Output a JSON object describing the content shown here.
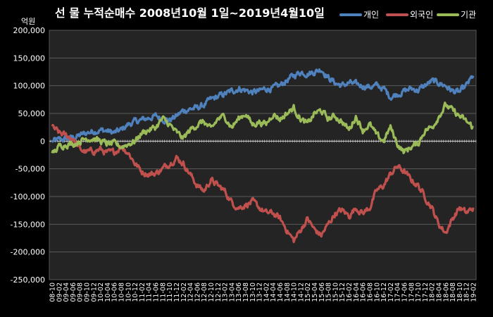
{
  "chart_data": {
    "type": "line",
    "title": "선 물 누적순매수 2008년10월 1일~2019년4월10일",
    "ylabel": "억원",
    "ylim": [
      -250000,
      200000
    ],
    "yticks": [
      -250000,
      -200000,
      -150000,
      -100000,
      -50000,
      0,
      50000,
      100000,
      150000,
      200000
    ],
    "ytick_labels": [
      "-250,000",
      "-200,000",
      "-150,000",
      "-100,000",
      "-50,000",
      "0",
      "50,000",
      "100,000",
      "150,000",
      "200,000"
    ],
    "grid": true,
    "legend_position": "top-right",
    "x_labels": [
      "08-10",
      "09-02",
      "09-04",
      "09-06",
      "09-08",
      "09-10",
      "09-12",
      "10-02",
      "10-04",
      "10-06",
      "10-08",
      "10-10",
      "10-12",
      "11-02",
      "11-04",
      "11-06",
      "11-08",
      "11-10",
      "11-12",
      "12-02",
      "12-04",
      "12-06",
      "12-08",
      "12-10",
      "12-12",
      "13-02",
      "13-04",
      "13-06",
      "13-08",
      "13-10",
      "13-12",
      "14-02",
      "14-04",
      "14-06",
      "14-08",
      "14-10",
      "14-12",
      "15-02",
      "15-04",
      "15-06",
      "15-08",
      "15-10",
      "15-12",
      "16-02",
      "16-04",
      "16-06",
      "16-08",
      "16-10",
      "16-12",
      "17-02",
      "17-04",
      "17-06",
      "17-08",
      "17-10",
      "17-12",
      "18-02",
      "18-04",
      "18-06",
      "18-08",
      "18-10",
      "18-12",
      "19-02"
    ],
    "series": [
      {
        "name": "개인",
        "color": "#4f81bd",
        "values": [
          0,
          2000,
          4000,
          6000,
          10000,
          15000,
          18000,
          20000,
          18000,
          15000,
          20000,
          30000,
          35000,
          38000,
          42000,
          45000,
          40000,
          38000,
          45000,
          55000,
          58000,
          60000,
          65000,
          75000,
          80000,
          85000,
          90000,
          95000,
          92000,
          88000,
          90000,
          95000,
          95000,
          100000,
          110000,
          118000,
          125000,
          122000,
          125000,
          130000,
          115000,
          105000,
          100000,
          105000,
          102000,
          100000,
          98000,
          100000,
          95000,
          80000,
          85000,
          90000,
          95000,
          92000,
          100000,
          108000,
          105000,
          100000,
          90000,
          88000,
          100000,
          118000
        ]
      },
      {
        "name": "외국인",
        "color": "#c0504d",
        "values": [
          25000,
          15000,
          10000,
          5000,
          -15000,
          -20000,
          -18000,
          -15000,
          -22000,
          -20000,
          -10000,
          -20000,
          -40000,
          -55000,
          -60000,
          -58000,
          -50000,
          -40000,
          -30000,
          -40000,
          -60000,
          -80000,
          -90000,
          -70000,
          -80000,
          -90000,
          -110000,
          -120000,
          -115000,
          -110000,
          -120000,
          -130000,
          -130000,
          -140000,
          -160000,
          -180000,
          -160000,
          -140000,
          -160000,
          -170000,
          -150000,
          -130000,
          -125000,
          -135000,
          -120000,
          -130000,
          -120000,
          -90000,
          -80000,
          -60000,
          -45000,
          -55000,
          -70000,
          -80000,
          -100000,
          -120000,
          -150000,
          -165000,
          -140000,
          -120000,
          -130000,
          -120000
        ]
      },
      {
        "name": "기관",
        "color": "#9bbb59",
        "values": [
          -25000,
          -10000,
          -5000,
          -5000,
          0,
          5000,
          5000,
          0,
          -5000,
          -5000,
          -10000,
          -5000,
          0,
          15000,
          20000,
          25000,
          40000,
          30000,
          15000,
          5000,
          20000,
          30000,
          35000,
          20000,
          40000,
          45000,
          25000,
          40000,
          50000,
          30000,
          35000,
          30000,
          50000,
          40000,
          50000,
          60000,
          40000,
          30000,
          50000,
          55000,
          40000,
          45000,
          35000,
          20000,
          45000,
          20000,
          30000,
          10000,
          0,
          25000,
          -5000,
          -20000,
          -10000,
          -5000,
          20000,
          25000,
          45000,
          65000,
          55000,
          45000,
          35000,
          25000
        ]
      }
    ]
  }
}
